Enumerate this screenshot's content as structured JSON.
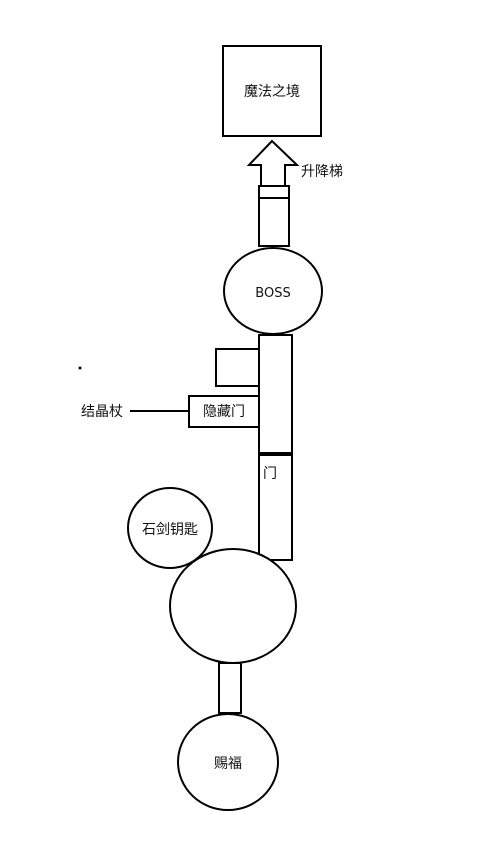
{
  "diagram": {
    "nodes": {
      "magic_realm": "魔法之境",
      "elevator": "升降梯",
      "boss": "BOSS",
      "crystal_staff": "结晶杖",
      "hidden_door": "隐藏门",
      "door": "门",
      "stone_sword_key": "石剑钥匙",
      "blessing": "赐福"
    }
  }
}
